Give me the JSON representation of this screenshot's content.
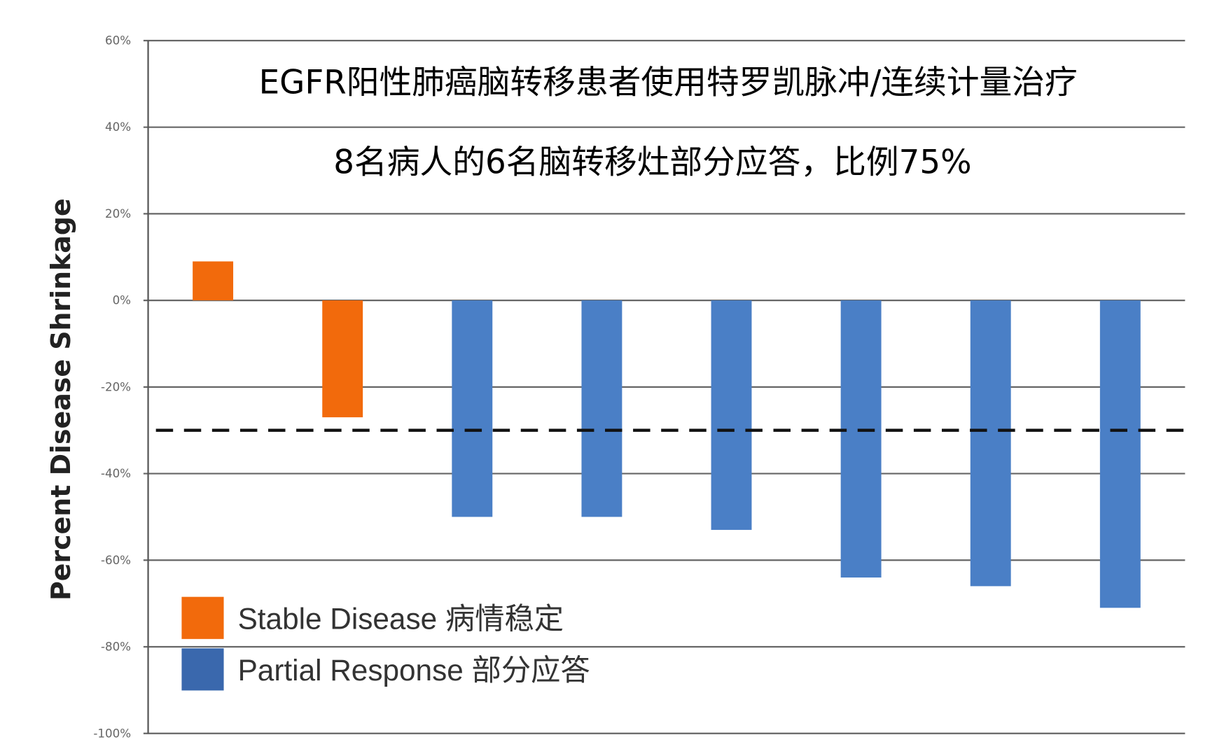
{
  "chart_data": {
    "type": "bar",
    "title": "EGFR阳性肺癌脑转移患者使用特罗凯脉冲/连续计量治疗",
    "subtitle": "8名病人的6名脑转移灶部分应答，比例75%",
    "xlabel": "",
    "ylabel": "Percent Disease Shrinkage",
    "ylim": [
      -100,
      60
    ],
    "yticks": [
      "60%",
      "40%",
      "20%",
      "0%",
      "-20%",
      "-40%",
      "-60%",
      "-80%",
      "-100%"
    ],
    "ytick_values": [
      60,
      40,
      20,
      0,
      -20,
      -40,
      -60,
      -80,
      -100
    ],
    "grid": true,
    "reference_line": {
      "value": -30,
      "style": "dashed"
    },
    "values": [
      9,
      -27,
      -50,
      -50,
      -53,
      -64,
      -66,
      -71
    ],
    "bar_series": [
      "Stable Disease",
      "Stable Disease",
      "Partial Response",
      "Partial Response",
      "Partial Response",
      "Partial Response",
      "Partial Response",
      "Partial Response"
    ],
    "legend_position": "bottom-left",
    "legend": [
      {
        "label": "Stable Disease 病情稳定",
        "key": "Stable Disease",
        "color": "#f26a0c"
      },
      {
        "label": "Partial Response 部分应答",
        "key": "Partial Response",
        "color": "#4a7fc6"
      }
    ]
  }
}
